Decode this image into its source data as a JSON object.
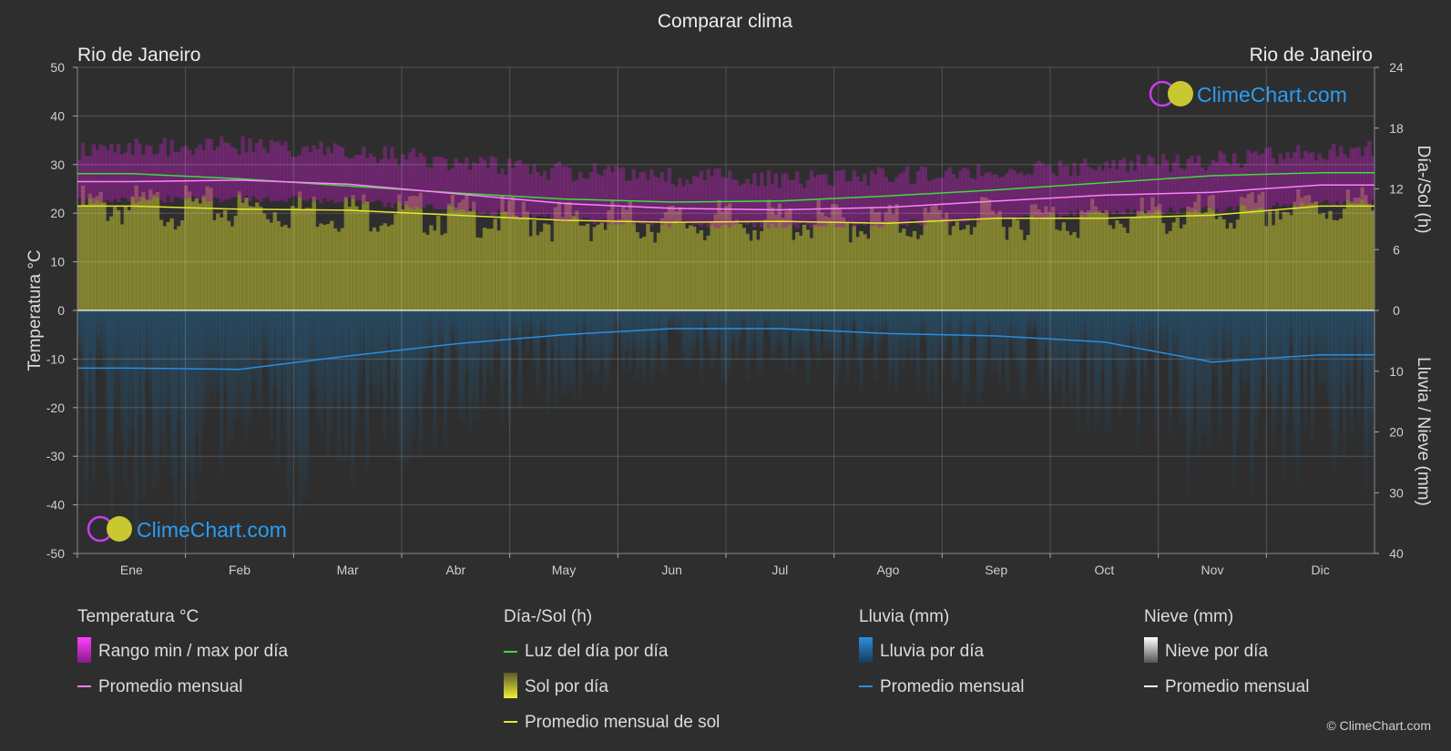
{
  "title": "Comparar clima",
  "location_left": "Rio de Janeiro",
  "location_right": "Rio de Janeiro",
  "brand": "ClimeChart.com",
  "copyright": "© ClimeChart.com",
  "colors": {
    "background": "#2e2e2e",
    "temp_range": "#c81ec8",
    "temp_avg": "#ff80ff",
    "daylight": "#3ddc3d",
    "sun_fill": "#9a9a32",
    "sun_avg": "#e6e632",
    "rain_fill": "#1a5a8a",
    "rain_avg": "#2a8ee0",
    "snow": "#ffffff",
    "brand_text": "#2a9df4"
  },
  "legend": {
    "temperature": {
      "header": "Temperatura °C",
      "items": [
        "Rango min / max por día",
        "Promedio mensual"
      ]
    },
    "sun": {
      "header": "Día-/Sol (h)",
      "items": [
        "Luz del día por día",
        "Sol por día",
        "Promedio mensual de sol"
      ]
    },
    "rain": {
      "header": "Lluvia (mm)",
      "items": [
        "Lluvia por día",
        "Promedio mensual"
      ]
    },
    "snow": {
      "header": "Nieve (mm)",
      "items": [
        "Nieve por día",
        "Promedio mensual"
      ]
    }
  },
  "chart_data": {
    "type": "line",
    "title": "Comparar clima",
    "months": [
      "Ene",
      "Feb",
      "Mar",
      "Abr",
      "May",
      "Jun",
      "Jul",
      "Ago",
      "Sep",
      "Oct",
      "Nov",
      "Dic"
    ],
    "y_left": {
      "label": "Temperatura °C",
      "range": [
        -50,
        50
      ],
      "ticks": [
        50,
        40,
        30,
        20,
        10,
        0,
        -10,
        -20,
        -30,
        -40,
        -50
      ]
    },
    "y_right_top": {
      "label": "Día-/Sol (h)",
      "range": [
        0,
        24
      ],
      "ticks": [
        24,
        18,
        12,
        6,
        0
      ]
    },
    "y_right_bottom": {
      "label": "Lluvia / Nieve (mm)",
      "range": [
        0,
        40
      ],
      "ticks": [
        0,
        10,
        20,
        30,
        40
      ]
    },
    "grid": true,
    "series": [
      {
        "name": "Luz del día por día",
        "axis": "hours",
        "values": [
          13.5,
          13.0,
          12.3,
          11.6,
          11.0,
          10.7,
          10.8,
          11.3,
          11.9,
          12.6,
          13.3,
          13.6
        ]
      },
      {
        "name": "Promedio mensual de sol",
        "axis": "hours",
        "values": [
          10.3,
          10.0,
          9.9,
          9.4,
          8.9,
          8.7,
          8.8,
          8.6,
          9.1,
          9.1,
          9.4,
          10.3
        ]
      },
      {
        "name": "Promedio mensual",
        "kind": "temperature",
        "axis": "temperature",
        "values": [
          26.5,
          26.8,
          26.0,
          24.0,
          22.0,
          21.0,
          20.7,
          21.2,
          22.5,
          23.7,
          24.3,
          25.8
        ]
      },
      {
        "name": "Rango min / max por día",
        "kind": "temperature_range",
        "axis": "temperature",
        "min": [
          23.5,
          23.8,
          23.2,
          21.5,
          19.5,
          18.5,
          18.2,
          18.5,
          19.5,
          20.8,
          21.5,
          22.8
        ],
        "max": [
          31.5,
          32.0,
          31.0,
          28.5,
          26.5,
          25.5,
          25.0,
          25.8,
          26.8,
          28.0,
          28.8,
          30.5
        ]
      },
      {
        "name": "Promedio mensual",
        "kind": "rain",
        "axis": "mm",
        "values": [
          9.5,
          9.7,
          7.5,
          5.5,
          4.0,
          3.0,
          3.0,
          3.8,
          4.2,
          5.2,
          8.5,
          7.3
        ]
      }
    ]
  }
}
